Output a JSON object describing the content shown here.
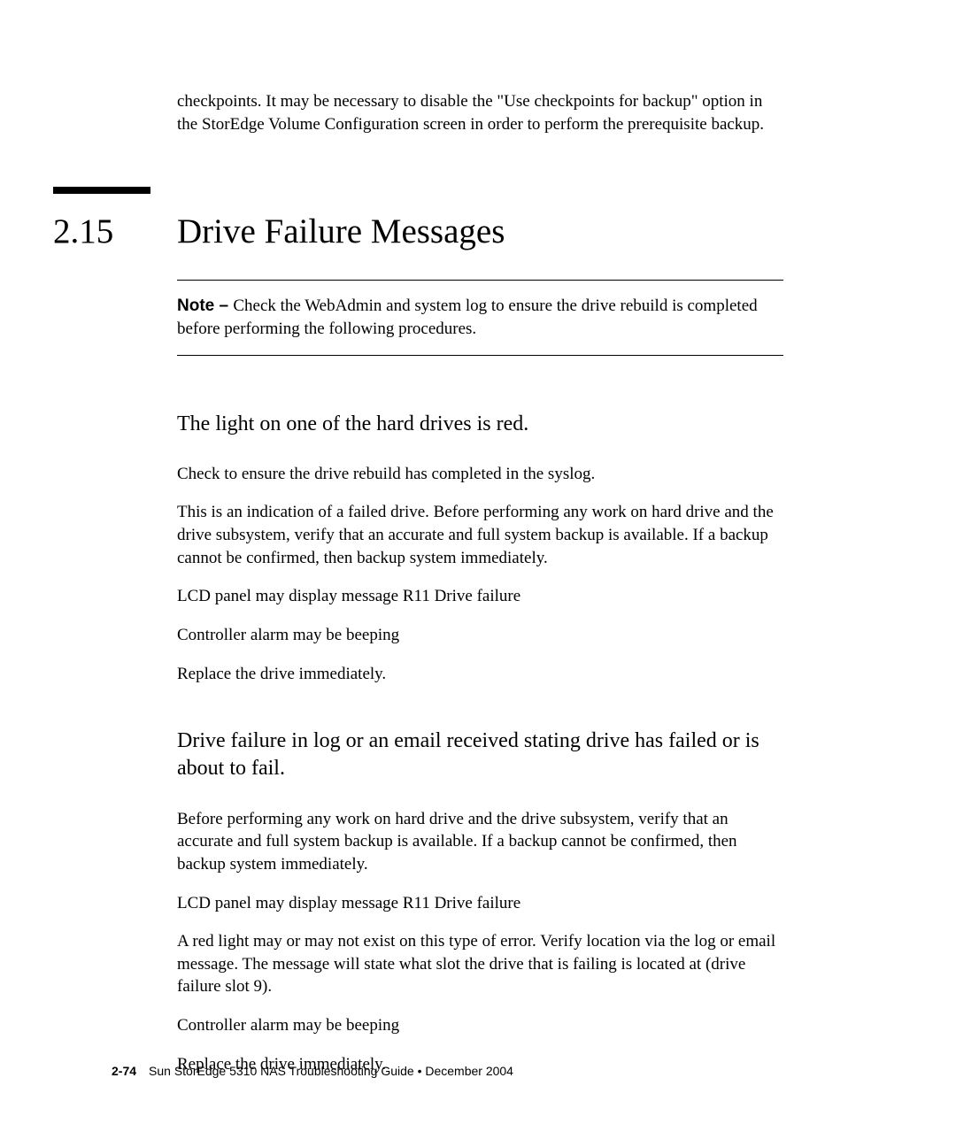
{
  "intro": "checkpoints. It may be necessary to disable the \"Use checkpoints for backup\" option in the StorEdge Volume Configuration screen in order to perform the prerequisite backup.",
  "section_number": "2.15",
  "section_title": "Drive Failure Messages",
  "note_label": "Note – ",
  "note_text": "Check the WebAdmin and system log to ensure the drive rebuild is completed before performing the following procedures.",
  "sub1_heading": "The light on one of the hard drives is red.",
  "sub1_p1": "Check to ensure the drive rebuild has completed in the syslog.",
  "sub1_p2": "This is an indication of a failed drive. Before performing any work on hard drive and the drive subsystem, verify that an accurate and full system backup is available. If a backup cannot be confirmed, then backup system immediately.",
  "sub1_p3": "LCD panel may display message R11 Drive failure",
  "sub1_p4": "Controller alarm may be beeping",
  "sub1_p5": "Replace the drive immediately.",
  "sub2_heading": "Drive failure in log or an email received stating drive has failed or is about to fail.",
  "sub2_p1": "Before performing any work on hard drive and the drive subsystem, verify that an accurate and full system backup is available. If a backup cannot be confirmed, then backup system immediately.",
  "sub2_p2": "LCD panel may display message R11 Drive failure",
  "sub2_p3": "A red light may or may not exist on this type of error. Verify location via the log or email message. The message will state what slot the drive that is failing is located at (drive failure slot 9).",
  "sub2_p4": "Controller alarm may be beeping",
  "sub2_p5": "Replace the drive immediately.",
  "footer_pagenum": "2-74",
  "footer_text": "Sun StorEdge 5310 NAS Troubleshooting Guide • December 2004"
}
